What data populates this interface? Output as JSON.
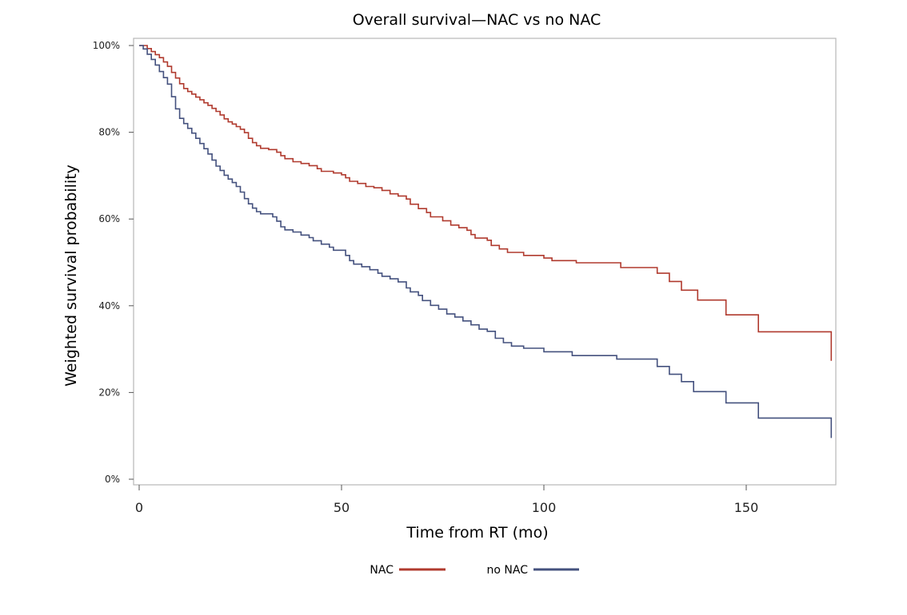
{
  "chart_data": {
    "type": "line",
    "step": true,
    "title": "Overall survival—NAC vs no NAC",
    "xlabel": "Time from RT (mo)",
    "ylabel": "Weighted survival probability",
    "xlim": [
      0,
      172
    ],
    "ylim": [
      0,
      100
    ],
    "x_ticks": [
      0,
      50,
      100,
      150
    ],
    "y_ticks": [
      0,
      20,
      40,
      60,
      80,
      100
    ],
    "y_tick_labels": [
      "0%",
      "20%",
      "40%",
      "60%",
      "80%",
      "100%"
    ],
    "grid": false,
    "legend_position": "bottom",
    "series": [
      {
        "name": "NAC",
        "color": "#b03a2e",
        "points": [
          [
            0,
            100
          ],
          [
            2,
            99.3
          ],
          [
            3,
            98.6
          ],
          [
            4,
            97.9
          ],
          [
            5,
            97.2
          ],
          [
            6,
            96.2
          ],
          [
            7,
            95.2
          ],
          [
            8,
            93.8
          ],
          [
            9,
            92.5
          ],
          [
            10,
            91.2
          ],
          [
            11,
            90.1
          ],
          [
            12,
            89.4
          ],
          [
            13,
            88.8
          ],
          [
            14,
            88.1
          ],
          [
            15,
            87.5
          ],
          [
            16,
            86.8
          ],
          [
            17,
            86.2
          ],
          [
            18,
            85.5
          ],
          [
            19,
            84.8
          ],
          [
            20,
            84.0
          ],
          [
            21,
            83.1
          ],
          [
            22,
            82.4
          ],
          [
            23,
            81.9
          ],
          [
            24,
            81.3
          ],
          [
            25,
            80.7
          ],
          [
            26,
            79.9
          ],
          [
            27,
            78.6
          ],
          [
            28,
            77.6
          ],
          [
            29,
            76.9
          ],
          [
            30,
            76.3
          ],
          [
            32,
            76.0
          ],
          [
            34,
            75.4
          ],
          [
            35,
            74.6
          ],
          [
            36,
            73.9
          ],
          [
            38,
            73.2
          ],
          [
            40,
            72.8
          ],
          [
            42,
            72.3
          ],
          [
            44,
            71.6
          ],
          [
            45,
            71.0
          ],
          [
            48,
            70.6
          ],
          [
            50,
            70.2
          ],
          [
            51,
            69.5
          ],
          [
            52,
            68.7
          ],
          [
            54,
            68.2
          ],
          [
            56,
            67.5
          ],
          [
            58,
            67.2
          ],
          [
            60,
            66.6
          ],
          [
            62,
            65.8
          ],
          [
            64,
            65.3
          ],
          [
            66,
            64.6
          ],
          [
            67,
            63.4
          ],
          [
            69,
            62.4
          ],
          [
            71,
            61.5
          ],
          [
            72,
            60.5
          ],
          [
            75,
            59.6
          ],
          [
            77,
            58.6
          ],
          [
            79,
            58.0
          ],
          [
            81,
            57.4
          ],
          [
            82,
            56.4
          ],
          [
            83,
            55.6
          ],
          [
            86,
            55.1
          ],
          [
            87,
            53.9
          ],
          [
            89,
            53.1
          ],
          [
            91,
            52.3
          ],
          [
            95,
            51.6
          ],
          [
            100,
            51.0
          ],
          [
            102,
            50.4
          ],
          [
            108,
            49.9
          ],
          [
            119,
            48.8
          ],
          [
            128,
            47.5
          ],
          [
            131,
            45.6
          ],
          [
            134,
            43.6
          ],
          [
            138,
            41.3
          ],
          [
            145,
            37.9
          ],
          [
            153,
            34.0
          ],
          [
            171,
            27.3
          ]
        ]
      },
      {
        "name": "no NAC",
        "color": "#44517e",
        "points": [
          [
            0,
            100
          ],
          [
            1,
            99.2
          ],
          [
            2,
            98.0
          ],
          [
            3,
            96.8
          ],
          [
            4,
            95.5
          ],
          [
            5,
            94.0
          ],
          [
            6,
            92.6
          ],
          [
            7,
            91.1
          ],
          [
            8,
            88.2
          ],
          [
            9,
            85.4
          ],
          [
            10,
            83.2
          ],
          [
            11,
            82.0
          ],
          [
            12,
            80.9
          ],
          [
            13,
            79.8
          ],
          [
            14,
            78.6
          ],
          [
            15,
            77.4
          ],
          [
            16,
            76.2
          ],
          [
            17,
            75.0
          ],
          [
            18,
            73.6
          ],
          [
            19,
            72.2
          ],
          [
            20,
            71.2
          ],
          [
            21,
            70.1
          ],
          [
            22,
            69.2
          ],
          [
            23,
            68.4
          ],
          [
            24,
            67.5
          ],
          [
            25,
            66.2
          ],
          [
            26,
            64.7
          ],
          [
            27,
            63.5
          ],
          [
            28,
            62.5
          ],
          [
            29,
            61.7
          ],
          [
            30,
            61.2
          ],
          [
            33,
            60.5
          ],
          [
            34,
            59.5
          ],
          [
            35,
            58.2
          ],
          [
            36,
            57.5
          ],
          [
            38,
            57.0
          ],
          [
            40,
            56.3
          ],
          [
            42,
            55.7
          ],
          [
            43,
            55.0
          ],
          [
            45,
            54.2
          ],
          [
            47,
            53.5
          ],
          [
            48,
            52.8
          ],
          [
            51,
            51.6
          ],
          [
            52,
            50.4
          ],
          [
            53,
            49.6
          ],
          [
            55,
            49.0
          ],
          [
            57,
            48.3
          ],
          [
            59,
            47.5
          ],
          [
            60,
            46.8
          ],
          [
            62,
            46.2
          ],
          [
            64,
            45.5
          ],
          [
            66,
            44.1
          ],
          [
            67,
            43.2
          ],
          [
            69,
            42.4
          ],
          [
            70,
            41.2
          ],
          [
            72,
            40.1
          ],
          [
            74,
            39.2
          ],
          [
            76,
            38.1
          ],
          [
            78,
            37.4
          ],
          [
            80,
            36.5
          ],
          [
            82,
            35.6
          ],
          [
            84,
            34.6
          ],
          [
            86,
            34.1
          ],
          [
            88,
            32.5
          ],
          [
            90,
            31.5
          ],
          [
            92,
            30.7
          ],
          [
            95,
            30.2
          ],
          [
            100,
            29.4
          ],
          [
            107,
            28.5
          ],
          [
            118,
            27.7
          ],
          [
            128,
            26.0
          ],
          [
            131,
            24.2
          ],
          [
            134,
            22.5
          ],
          [
            137,
            20.2
          ],
          [
            145,
            17.6
          ],
          [
            153,
            14.1
          ],
          [
            171,
            9.5
          ]
        ]
      }
    ]
  }
}
